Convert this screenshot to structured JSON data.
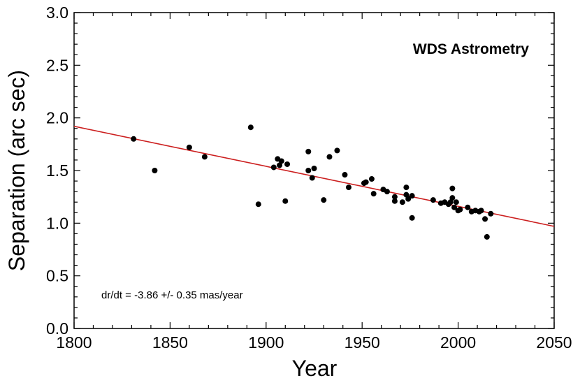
{
  "chart_data": {
    "type": "scatter",
    "title": "WDS Astrometry",
    "xlabel": "Year",
    "ylabel": "Separation (arc sec)",
    "xlim": [
      1800,
      2050
    ],
    "ylim": [
      0.0,
      3.0
    ],
    "xticks": [
      1800,
      1850,
      1900,
      1950,
      2000,
      2050
    ],
    "xtick_labels": [
      "1800",
      "1850",
      "1900",
      "1950",
      "2000",
      "2050"
    ],
    "yticks": [
      0.0,
      0.5,
      1.0,
      1.5,
      2.0,
      2.5,
      3.0
    ],
    "ytick_labels": [
      "0.0",
      "0.5",
      "1.0",
      "1.5",
      "2.0",
      "2.5",
      "3.0"
    ],
    "annotation": "dr/dt = -3.86 +/- 0.35 mas/year",
    "grid": false,
    "legend": "none",
    "colors": {
      "points": "#000000",
      "fit_line": "#cc1f1f",
      "axes": "#000000"
    },
    "series": [
      {
        "x": [
          1831,
          1842,
          1860,
          1868,
          1892,
          1896,
          1904,
          1906,
          1907,
          1908,
          1910,
          1911,
          1922,
          1922,
          1924,
          1925,
          1930,
          1933,
          1937,
          1941,
          1943,
          1951,
          1952,
          1955,
          1956,
          1961,
          1963,
          1967,
          1967,
          1971,
          1973,
          1973,
          1974,
          1976,
          1976,
          1987,
          1991,
          1993,
          1995,
          1996,
          1997,
          1997,
          1998,
          1999,
          2000,
          2001,
          2005,
          2007,
          2009,
          2011,
          2012,
          2014,
          2015,
          2017
        ],
        "y": [
          1.8,
          1.5,
          1.72,
          1.63,
          1.91,
          1.18,
          1.53,
          1.61,
          1.55,
          1.59,
          1.21,
          1.56,
          1.68,
          1.5,
          1.43,
          1.52,
          1.22,
          1.63,
          1.69,
          1.46,
          1.34,
          1.38,
          1.39,
          1.42,
          1.28,
          1.32,
          1.3,
          1.21,
          1.25,
          1.2,
          1.27,
          1.34,
          1.23,
          1.26,
          1.05,
          1.22,
          1.19,
          1.2,
          1.18,
          1.2,
          1.33,
          1.24,
          1.15,
          1.2,
          1.12,
          1.13,
          1.15,
          1.11,
          1.12,
          1.11,
          1.12,
          1.04,
          0.87,
          1.09
        ]
      }
    ],
    "fit_line": {
      "x": [
        1800,
        2050
      ],
      "y": [
        1.92,
        0.97
      ]
    }
  }
}
